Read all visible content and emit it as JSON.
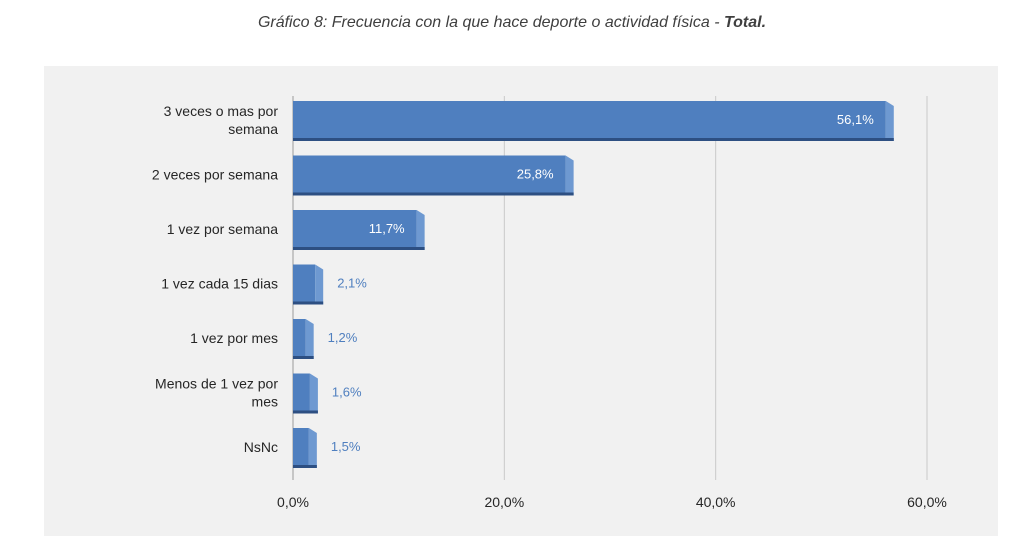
{
  "title": {
    "main": "Gráfico 8: Frecuencia con la que hace deporte o actividad física",
    "separator": " - ",
    "emphasis": "Total."
  },
  "colors": {
    "bar_front": "#4f7fbf",
    "bar_side": "#6e99d1",
    "bar_bottom": "#2d4f82",
    "gridline": "#c9c9c9",
    "panel": "#f1f1f1",
    "outside_label": "#4f7fbf"
  },
  "chart_data": {
    "type": "bar",
    "orientation": "horizontal",
    "title": "Gráfico 8: Frecuencia con la que hace deporte o actividad física - Total.",
    "categories": [
      [
        "3 veces o mas por",
        "semana"
      ],
      [
        "2 veces por semana"
      ],
      [
        "1 vez por semana"
      ],
      [
        "1 vez cada 15 dias"
      ],
      [
        "1 vez por mes"
      ],
      [
        "Menos de 1 vez por",
        "mes"
      ],
      [
        "NsNc"
      ]
    ],
    "values": [
      56.1,
      25.8,
      11.7,
      2.1,
      1.2,
      1.6,
      1.5
    ],
    "value_labels": [
      "56,1%",
      "25,8%",
      "11,7%",
      "2,1%",
      "1,2%",
      "1,6%",
      "1,5%"
    ],
    "xlim": [
      0,
      60
    ],
    "ticks": [
      0,
      20,
      40,
      60
    ],
    "tick_labels": [
      "0,0%",
      "20,0%",
      "40,0%",
      "60,0%"
    ],
    "grid": true,
    "legend": "none"
  }
}
